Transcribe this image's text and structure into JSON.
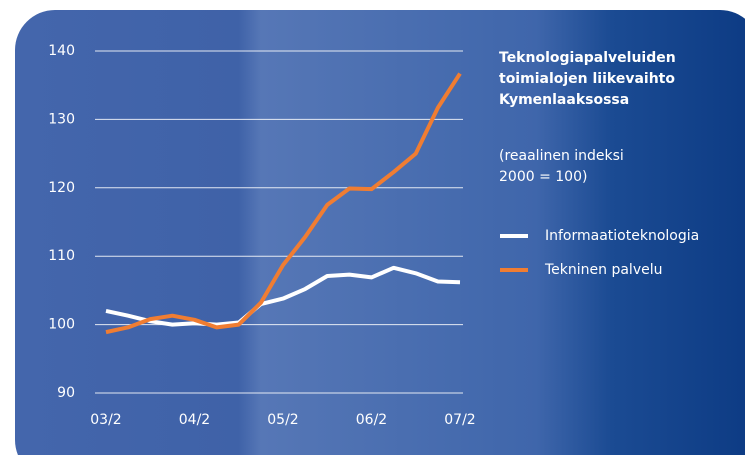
{
  "chart_data": {
    "type": "line",
    "title": [
      "Teknologiapalveluiden",
      "toimialojen liikevaihto",
      "Kymenlaaksossa"
    ],
    "subtitle": [
      "(reaalinen indeksi",
      "2000 = 100)"
    ],
    "categories": [
      "03/2",
      null,
      null,
      null,
      "04/2",
      null,
      null,
      null,
      "05/2",
      null,
      null,
      null,
      "06/2",
      null,
      null,
      null,
      "07/2"
    ],
    "series": [
      {
        "name": "Informaatioteknologia",
        "color": "#ffffff",
        "values": [
          102,
          101.3,
          100.5,
          100,
          100.2,
          100,
          100.3,
          103,
          103.8,
          105.2,
          107.1,
          107.3,
          106.9,
          108.3,
          107.5,
          106.3,
          106.2
        ]
      },
      {
        "name": "Tekninen palvelu",
        "color": "#f07d32",
        "values": [
          98.9,
          99.6,
          100.8,
          101.3,
          100.7,
          99.6,
          100,
          103.2,
          108.7,
          112.8,
          117.5,
          119.9,
          119.8,
          122.3,
          125,
          131.7,
          136.7
        ]
      }
    ],
    "ylim": [
      90,
      140
    ],
    "yticks": [
      90,
      100,
      110,
      120,
      130,
      140
    ],
    "grid": true
  }
}
